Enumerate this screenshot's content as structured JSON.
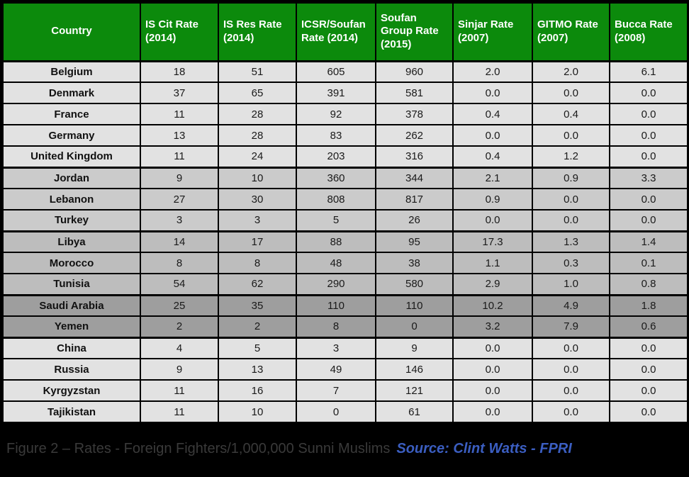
{
  "table": {
    "columns": [
      "Country",
      "IS Cit Rate (2014)",
      "IS Res Rate (2014)",
      "ICSR/Soufan Rate (2014)",
      "Soufan Group Rate (2015)",
      "Sinjar Rate (2007)",
      "GITMO Rate (2007)",
      "Bucca Rate (2008)"
    ],
    "rows": [
      {
        "country": "Belgium",
        "group": 1,
        "values": [
          "18",
          "51",
          "605",
          "960",
          "2.0",
          "2.0",
          "6.1"
        ]
      },
      {
        "country": "Denmark",
        "group": 1,
        "values": [
          "37",
          "65",
          "391",
          "581",
          "0.0",
          "0.0",
          "0.0"
        ]
      },
      {
        "country": "France",
        "group": 1,
        "values": [
          "11",
          "28",
          "92",
          "378",
          "0.4",
          "0.4",
          "0.0"
        ]
      },
      {
        "country": "Germany",
        "group": 1,
        "values": [
          "13",
          "28",
          "83",
          "262",
          "0.0",
          "0.0",
          "0.0"
        ]
      },
      {
        "country": "United Kingdom",
        "group": 1,
        "values": [
          "11",
          "24",
          "203",
          "316",
          "0.4",
          "1.2",
          "0.0"
        ]
      },
      {
        "country": "Jordan",
        "group": 2,
        "values": [
          "9",
          "10",
          "360",
          "344",
          "2.1",
          "0.9",
          "3.3"
        ]
      },
      {
        "country": "Lebanon",
        "group": 2,
        "values": [
          "27",
          "30",
          "808",
          "817",
          "0.9",
          "0.0",
          "0.0"
        ]
      },
      {
        "country": "Turkey",
        "group": 2,
        "values": [
          "3",
          "3",
          "5",
          "26",
          "0.0",
          "0.0",
          "0.0"
        ]
      },
      {
        "country": "Libya",
        "group": 3,
        "values": [
          "14",
          "17",
          "88",
          "95",
          "17.3",
          "1.3",
          "1.4"
        ]
      },
      {
        "country": "Morocco",
        "group": 3,
        "values": [
          "8",
          "8",
          "48",
          "38",
          "1.1",
          "0.3",
          "0.1"
        ]
      },
      {
        "country": "Tunisia",
        "group": 3,
        "values": [
          "54",
          "62",
          "290",
          "580",
          "2.9",
          "1.0",
          "0.8"
        ]
      },
      {
        "country": "Saudi Arabia",
        "group": 4,
        "values": [
          "25",
          "35",
          "110",
          "110",
          "10.2",
          "4.9",
          "1.8"
        ]
      },
      {
        "country": "Yemen",
        "group": 4,
        "values": [
          "2",
          "2",
          "8",
          "0",
          "3.2",
          "7.9",
          "0.6"
        ]
      },
      {
        "country": "China",
        "group": 5,
        "values": [
          "4",
          "5",
          "3",
          "9",
          "0.0",
          "0.0",
          "0.0"
        ]
      },
      {
        "country": "Russia",
        "group": 5,
        "values": [
          "9",
          "13",
          "49",
          "146",
          "0.0",
          "0.0",
          "0.0"
        ]
      },
      {
        "country": "Kyrgyzstan",
        "group": 5,
        "values": [
          "11",
          "16",
          "7",
          "121",
          "0.0",
          "0.0",
          "0.0"
        ]
      },
      {
        "country": "Tajikistan",
        "group": 5,
        "values": [
          "11",
          "10",
          "0",
          "61",
          "0.0",
          "0.0",
          "0.0"
        ]
      }
    ]
  },
  "footer": {
    "caption": "Figure 2 – Rates - Foreign Fighters/1,000,000 Sunni Muslims",
    "source": "Source: Clint Watts - FPRI"
  },
  "colors": {
    "header_bg": "#0C8A0C",
    "header_text": "#FFFFFF",
    "group_1_bg": "#E2E2E2",
    "group_2_bg": "#CBCBCB",
    "group_3_bg": "#BDBDBD",
    "group_4_bg": "#9E9E9E",
    "group_5_bg": "#E2E2E2",
    "border": "#000000",
    "caption_bg": "#000000",
    "caption_text": "#3A3A3A",
    "source_text": "#3B5EC1"
  }
}
